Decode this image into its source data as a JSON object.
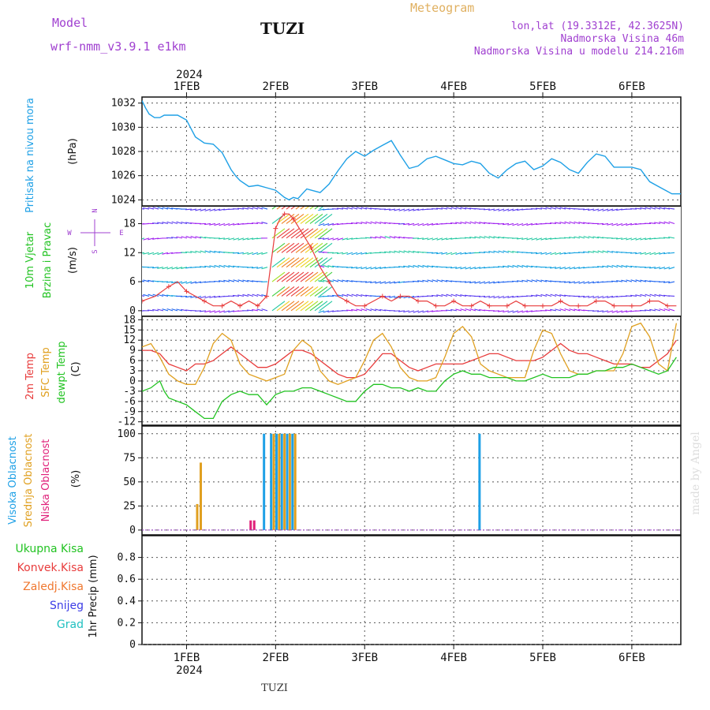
{
  "header": {
    "model_label": "Model",
    "model_name": "wrf-nmm_v3.9.1 e1km",
    "station": "TUZI",
    "meteogram_label": "Meteogram",
    "location": "lon,lat (19.3312E, 42.3625N)",
    "elevation": "Nadmorska Visina 46m",
    "model_elevation": "Nadmorska Visina u modelu 214.216m"
  },
  "footer": {
    "station": "TUZI",
    "credit": "made by Angel"
  },
  "axis": {
    "year": "2024",
    "days": [
      "1FEB",
      "2FEB",
      "3FEB",
      "4FEB",
      "5FEB",
      "6FEB"
    ]
  },
  "colors": {
    "pressure": "#1ea0e6",
    "t2m": "#e83c3c",
    "sfc": "#e0a020",
    "dewpt": "#22c322",
    "high_cloud": "#1ea0e6",
    "mid_cloud": "#e0a020",
    "low_cloud": "#e0207a",
    "wind_label": "#22c322",
    "wind_speed": "#e83c3c",
    "grid": "#555555"
  },
  "panels": {
    "pressure": {
      "label": "Pritisak na nivou mora",
      "unit": "(hPa)",
      "yticks": [
        "1024",
        "1026",
        "1028",
        "1030",
        "1032"
      ]
    },
    "wind": {
      "label_1": "10m Vjetar",
      "label_2": "Brzina i Pravac",
      "unit": "(m/s)",
      "yticks": [
        "0",
        "6",
        "12",
        "18"
      ],
      "compass": {
        "north": "N",
        "south": "S",
        "west": "W",
        "east": "E"
      }
    },
    "temperature": {
      "label_t2m": "2m Temp",
      "label_sfc": "SFC Temp",
      "label_dew": "dewpt Temp",
      "unit": "(C)",
      "yticks": [
        "-12",
        "-9",
        "-6",
        "-3",
        "0",
        "3",
        "6",
        "9",
        "12",
        "15",
        "18"
      ]
    },
    "cloud": {
      "label_high": "Visoka Oblacnost",
      "label_mid": "Srednja Oblacnost",
      "label_low": "Niska Oblacnost",
      "unit": "(%)",
      "yticks": [
        "0",
        "25",
        "50",
        "75",
        "100"
      ]
    },
    "precip": {
      "legend": [
        "Ukupna Kisa",
        "Konvek.Kisa",
        "Zaledj.Kisa",
        "Snijeg",
        "Grad"
      ],
      "legend_colors": [
        "#22c322",
        "#e83c3c",
        "#f07830",
        "#3c3ce6",
        "#20c0c0"
      ],
      "unit": "1hr Precip (mm)",
      "yticks": [
        "0",
        "0.2",
        "0.4",
        "0.6",
        "0.8"
      ]
    }
  },
  "chart_data": [
    {
      "type": "line",
      "panel": "pressure",
      "xlim": [
        -0.5,
        5.55
      ],
      "ylim": [
        1023.5,
        1032.5
      ],
      "series": [
        {
          "x": [
            -0.5,
            -0.46,
            -0.42,
            -0.36,
            -0.3,
            -0.25,
            -0.2,
            -0.1,
            0.0,
            0.1,
            0.2,
            0.3,
            0.4,
            0.5,
            0.55,
            0.6,
            0.7,
            0.8,
            0.9,
            1.0,
            1.1,
            1.15,
            1.2,
            1.25,
            1.3,
            1.35,
            1.4,
            1.5,
            1.6,
            1.7,
            1.8,
            1.9,
            2.0,
            2.1,
            2.2,
            2.3,
            2.4,
            2.5,
            2.6,
            2.7,
            2.8,
            2.9,
            3.0,
            3.1,
            3.2,
            3.3,
            3.4,
            3.5,
            3.6,
            3.7,
            3.8,
            3.9,
            4.0,
            4.1,
            4.2,
            4.3,
            4.4,
            4.5,
            4.6,
            4.7,
            4.8,
            4.9,
            5.0,
            5.1,
            5.2,
            5.3,
            5.4,
            5.45,
            5.5,
            5.55
          ],
          "y": [
            1032.2,
            1031.6,
            1031.1,
            1030.8,
            1030.8,
            1031.0,
            1031.0,
            1031.0,
            1030.6,
            1029.2,
            1028.7,
            1028.6,
            1027.9,
            1026.5,
            1026.0,
            1025.6,
            1025.1,
            1025.2,
            1025.0,
            1024.8,
            1024.2,
            1024.0,
            1024.2,
            1024.1,
            1024.5,
            1024.9,
            1024.8,
            1024.6,
            1025.3,
            1026.4,
            1027.4,
            1028.0,
            1027.6,
            1028.1,
            1028.5,
            1028.9,
            1027.7,
            1026.6,
            1026.8,
            1027.4,
            1027.6,
            1027.3,
            1027.0,
            1026.9,
            1027.2,
            1027.0,
            1026.2,
            1025.8,
            1026.5,
            1027.0,
            1027.2,
            1026.5,
            1026.8,
            1027.4,
            1027.1,
            1026.5,
            1026.2,
            1027.1,
            1027.8,
            1027.6,
            1026.7,
            1026.7,
            1026.7,
            1026.5,
            1025.5,
            1025.1,
            1024.7,
            1024.5,
            1024.5,
            1024.5
          ]
        }
      ]
    },
    {
      "type": "line",
      "panel": "wind",
      "xlim": [
        -0.5,
        5.55
      ],
      "ylim": [
        -1,
        21.5
      ],
      "series": [
        {
          "name": "wind speed",
          "x": [
            -0.5,
            -0.35,
            -0.2,
            -0.1,
            0.0,
            0.1,
            0.2,
            0.3,
            0.4,
            0.5,
            0.6,
            0.7,
            0.8,
            0.85,
            0.9,
            0.95,
            1.0,
            1.05,
            1.1,
            1.15,
            1.2,
            1.3,
            1.4,
            1.5,
            1.6,
            1.7,
            1.8,
            1.9,
            2.0,
            2.1,
            2.2,
            2.3,
            2.4,
            2.5,
            2.6,
            2.7,
            2.8,
            2.9,
            3.0,
            3.1,
            3.2,
            3.3,
            3.4,
            3.5,
            3.6,
            3.7,
            3.8,
            3.9,
            4.0,
            4.1,
            4.2,
            4.3,
            4.4,
            4.5,
            4.6,
            4.7,
            4.8,
            4.9,
            5.0,
            5.1,
            5.2,
            5.3,
            5.4,
            5.5
          ],
          "y": [
            2,
            3,
            5,
            6,
            4,
            3,
            2,
            1,
            1,
            2,
            1,
            2,
            1,
            2,
            3,
            10,
            17,
            19,
            20,
            20,
            19,
            16,
            13,
            9,
            6,
            3,
            2,
            1,
            1,
            2,
            3,
            2,
            3,
            3,
            2,
            2,
            1,
            1,
            2,
            1,
            1,
            2,
            1,
            1,
            1,
            2,
            1,
            1,
            1,
            1,
            2,
            1,
            1,
            1,
            2,
            2,
            1,
            1,
            1,
            1,
            2,
            2,
            1,
            1
          ]
        }
      ]
    },
    {
      "type": "line",
      "panel": "temperature",
      "xlim": [
        -0.5,
        5.55
      ],
      "ylim": [
        -13,
        19
      ],
      "series": [
        {
          "name": "2m Temp",
          "x": [
            -0.5,
            -0.4,
            -0.3,
            -0.2,
            -0.1,
            0.0,
            0.1,
            0.2,
            0.3,
            0.4,
            0.5,
            0.6,
            0.7,
            0.8,
            0.9,
            1.0,
            1.1,
            1.2,
            1.3,
            1.4,
            1.5,
            1.6,
            1.7,
            1.8,
            1.9,
            2.0,
            2.1,
            2.2,
            2.3,
            2.4,
            2.5,
            2.6,
            2.7,
            2.8,
            2.9,
            3.0,
            3.1,
            3.2,
            3.3,
            3.4,
            3.5,
            3.6,
            3.7,
            3.8,
            3.9,
            4.0,
            4.1,
            4.2,
            4.3,
            4.4,
            4.5,
            4.6,
            4.7,
            4.8,
            4.9,
            5.0,
            5.1,
            5.2,
            5.3,
            5.4,
            5.5
          ],
          "y": [
            9,
            9,
            8,
            5,
            4,
            3,
            5,
            5,
            6,
            8,
            10,
            8,
            6,
            4,
            4,
            5,
            7,
            9,
            9,
            8,
            6,
            4,
            2,
            1,
            1,
            2,
            5,
            8,
            8,
            6,
            4,
            3,
            4,
            5,
            5,
            5,
            5,
            6,
            7,
            8,
            8,
            7,
            6,
            6,
            6,
            7,
            9,
            11,
            9,
            8,
            8,
            7,
            6,
            5,
            5,
            5,
            4,
            4,
            6,
            8,
            12
          ]
        },
        {
          "name": "SFC Temp",
          "x": [
            -0.5,
            -0.4,
            -0.3,
            -0.2,
            -0.1,
            0.0,
            0.1,
            0.2,
            0.3,
            0.4,
            0.5,
            0.6,
            0.7,
            0.8,
            0.9,
            1.0,
            1.1,
            1.2,
            1.3,
            1.4,
            1.5,
            1.6,
            1.7,
            1.8,
            1.9,
            2.0,
            2.1,
            2.2,
            2.3,
            2.4,
            2.5,
            2.6,
            2.7,
            2.8,
            2.9,
            3.0,
            3.1,
            3.2,
            3.3,
            3.4,
            3.5,
            3.6,
            3.7,
            3.8,
            3.9,
            4.0,
            4.1,
            4.2,
            4.3,
            4.4,
            4.5,
            4.6,
            4.7,
            4.8,
            4.9,
            5.0,
            5.1,
            5.2,
            5.3,
            5.4,
            5.5
          ],
          "y": [
            10,
            11,
            7,
            2,
            0,
            -1,
            -1,
            4,
            11,
            14,
            12,
            5,
            2,
            1,
            0,
            1,
            2,
            9,
            12,
            10,
            3,
            0,
            -1,
            0,
            1,
            6,
            12,
            14,
            10,
            4,
            1,
            0,
            0,
            1,
            7,
            14,
            16,
            13,
            5,
            3,
            2,
            1,
            1,
            1,
            9,
            15,
            14,
            8,
            3,
            2,
            2,
            3,
            3,
            3,
            8,
            16,
            17,
            13,
            5,
            3,
            17
          ]
        },
        {
          "name": "dewpt Temp",
          "x": [
            -0.5,
            -0.4,
            -0.3,
            -0.25,
            -0.2,
            -0.1,
            0.0,
            0.1,
            0.2,
            0.3,
            0.4,
            0.5,
            0.6,
            0.7,
            0.8,
            0.9,
            1.0,
            1.1,
            1.2,
            1.3,
            1.4,
            1.5,
            1.6,
            1.7,
            1.8,
            1.9,
            2.0,
            2.1,
            2.2,
            2.3,
            2.4,
            2.5,
            2.6,
            2.7,
            2.8,
            2.9,
            3.0,
            3.1,
            3.2,
            3.3,
            3.4,
            3.5,
            3.6,
            3.7,
            3.8,
            3.9,
            4.0,
            4.1,
            4.2,
            4.3,
            4.4,
            4.5,
            4.6,
            4.7,
            4.8,
            4.9,
            5.0,
            5.1,
            5.2,
            5.3,
            5.4,
            5.5
          ],
          "y": [
            -3,
            -2,
            0,
            -3,
            -5,
            -6,
            -7,
            -9,
            -11,
            -11,
            -6,
            -4,
            -3,
            -4,
            -4,
            -7,
            -4,
            -3,
            -3,
            -2,
            -2,
            -3,
            -4,
            -5,
            -6,
            -6,
            -3,
            -1,
            -1,
            -2,
            -2,
            -3,
            -2,
            -3,
            -3,
            0,
            2,
            3,
            2,
            2,
            1,
            1,
            1,
            0,
            0,
            1,
            2,
            1,
            1,
            1,
            2,
            2,
            3,
            3,
            4,
            4,
            5,
            4,
            3,
            2,
            3,
            7
          ]
        }
      ]
    },
    {
      "type": "bar",
      "panel": "cloud",
      "xlim": [
        -0.5,
        5.55
      ],
      "ylim": [
        -5,
        108
      ],
      "series": [
        {
          "name": "Srednja Oblacnost",
          "x": [
            0.12,
            0.16,
            0.98,
            1.04,
            1.1,
            1.16,
            1.22
          ],
          "values": [
            27,
            70,
            100,
            100,
            100,
            100,
            100
          ]
        },
        {
          "name": "Niska Oblacnost",
          "x": [
            0.72,
            0.76
          ],
          "values": [
            10,
            10
          ]
        },
        {
          "name": "Visoka Oblacnost",
          "x": [
            0.87,
            0.95,
            1.01,
            1.07,
            1.13,
            1.19,
            3.29
          ],
          "values": [
            100,
            100,
            100,
            100,
            100,
            100,
            100
          ]
        }
      ]
    },
    {
      "type": "bar",
      "panel": "precip",
      "xlim": [
        -0.5,
        5.55
      ],
      "ylim": [
        0,
        1.0
      ],
      "series": [
        {
          "name": "Ukupna Kisa",
          "x": [],
          "values": []
        }
      ]
    }
  ]
}
